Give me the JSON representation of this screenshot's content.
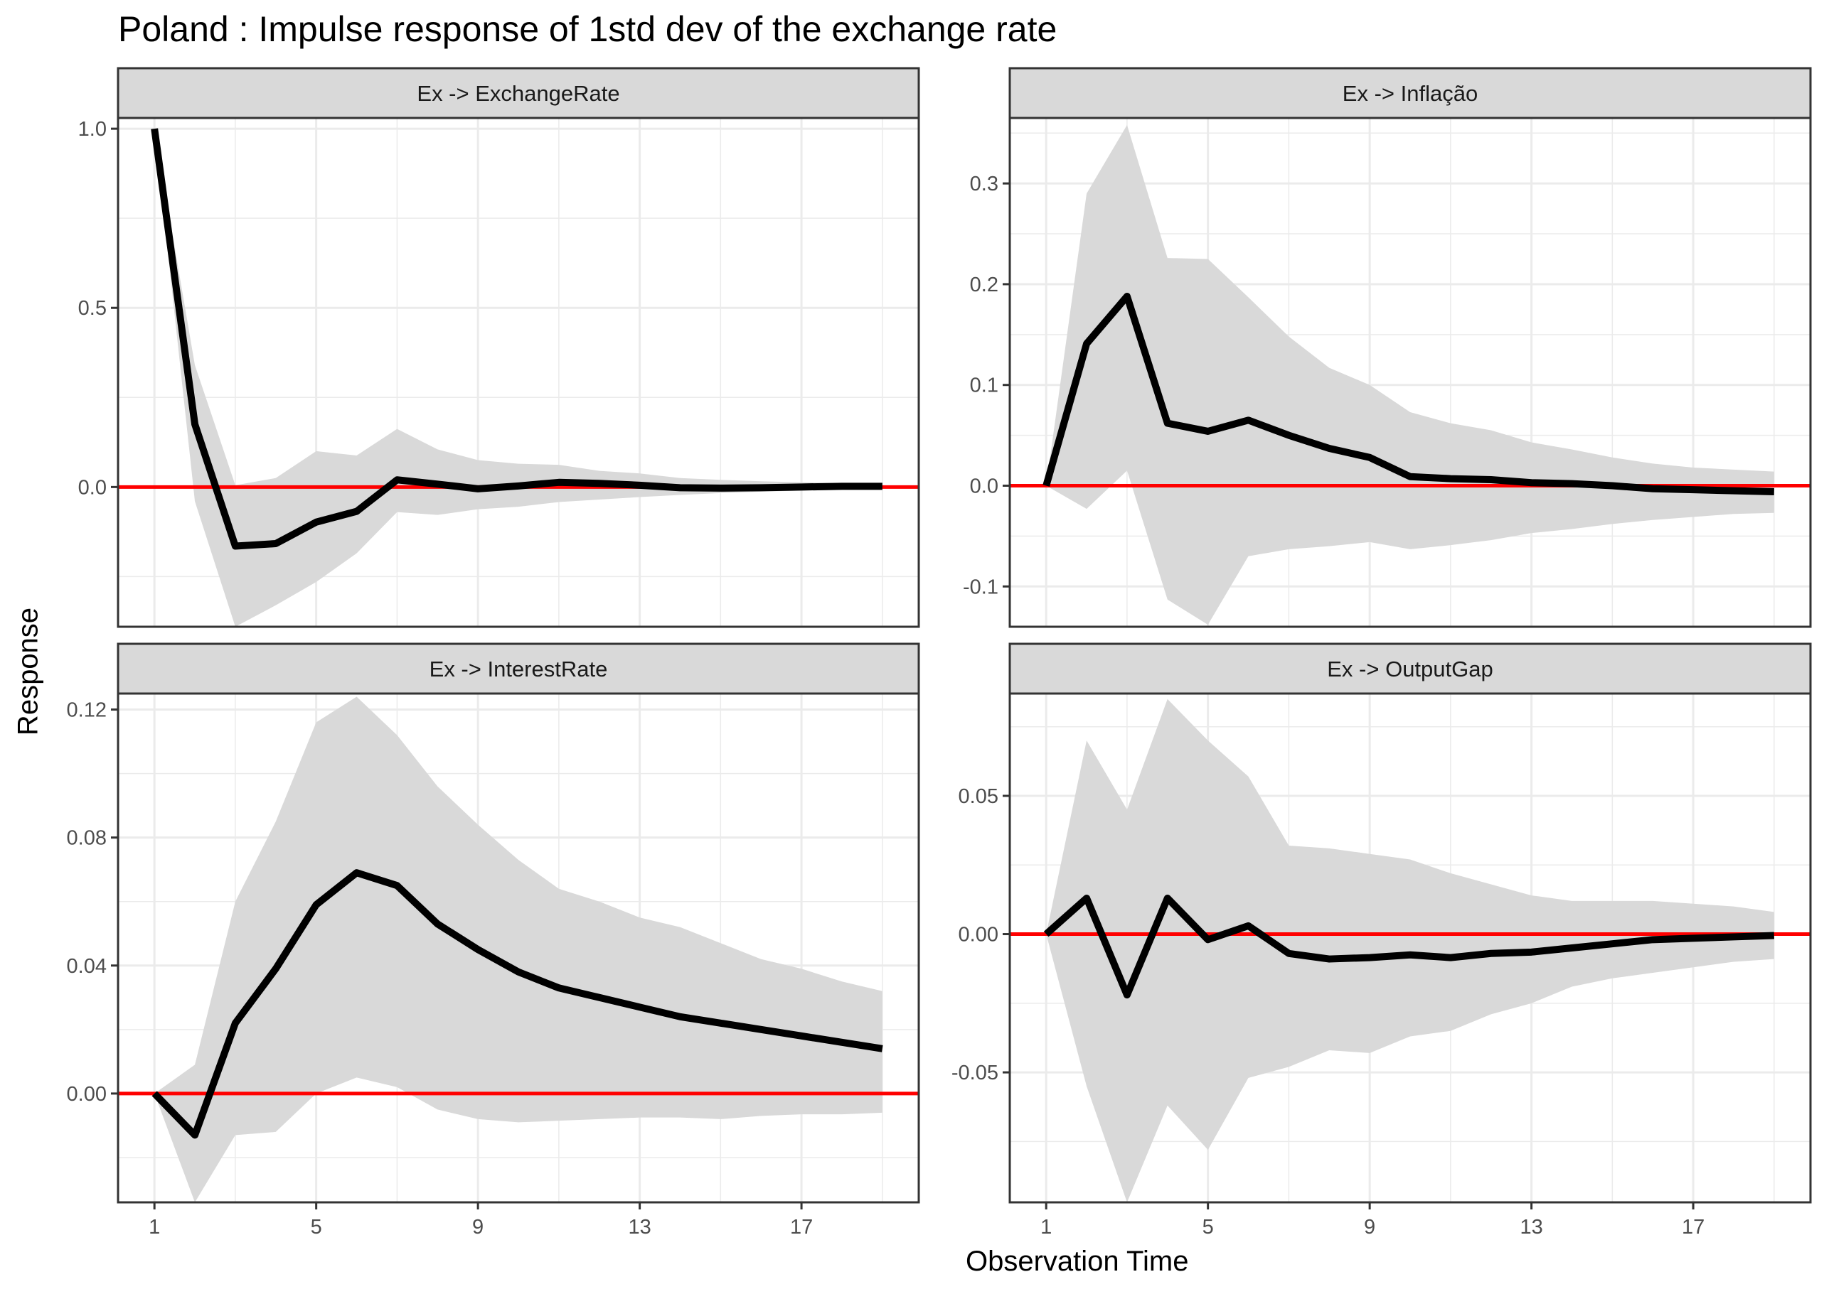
{
  "title": "Poland : Impulse response of 1std dev of the exchange rate",
  "xlabel": "Observation Time",
  "ylabel": "Response",
  "colors": {
    "response": "#000000",
    "zero_line": "#ff0000",
    "band": "#d9d9d9",
    "strip": "#d9d9d9",
    "grid": "#ebebeb"
  },
  "chart_data": {
    "type": "line",
    "x": [
      1,
      2,
      3,
      4,
      5,
      6,
      7,
      8,
      9,
      10,
      11,
      12,
      13,
      14,
      15,
      16,
      17,
      18,
      19
    ],
    "xticks": [
      1,
      5,
      9,
      13,
      17
    ],
    "xlim": [
      0.1,
      19.9
    ],
    "panels": [
      {
        "strip": "Ex -> ExchangeRate",
        "ylim": [
          -0.39,
          1.03
        ],
        "yticks": [
          0.0,
          0.5,
          1.0
        ],
        "ytick_labels": [
          "0.0",
          "0.5",
          "1.0"
        ],
        "response": [
          1.0,
          0.175,
          -0.165,
          -0.158,
          -0.098,
          -0.068,
          0.02,
          0.008,
          -0.005,
          0.003,
          0.013,
          0.01,
          0.005,
          -0.002,
          -0.003,
          -0.002,
          0.0,
          0.002,
          0.002
        ],
        "lower": [
          1.0,
          -0.04,
          -0.39,
          -0.33,
          -0.265,
          -0.185,
          -0.07,
          -0.078,
          -0.062,
          -0.055,
          -0.042,
          -0.035,
          -0.028,
          -0.022,
          -0.017,
          -0.013,
          -0.01,
          -0.008,
          -0.006
        ],
        "upper": [
          1.0,
          0.34,
          0.005,
          0.025,
          0.1,
          0.088,
          0.162,
          0.105,
          0.075,
          0.065,
          0.062,
          0.045,
          0.038,
          0.025,
          0.02,
          0.016,
          0.013,
          0.011,
          0.01
        ]
      },
      {
        "strip": "Ex -> Inflação",
        "ylim": [
          -0.14,
          0.365
        ],
        "yticks": [
          -0.1,
          0.0,
          0.1,
          0.2,
          0.3
        ],
        "ytick_labels": [
          "-0.1",
          "0.0",
          "0.1",
          "0.2",
          "0.3"
        ],
        "response": [
          0.0,
          0.141,
          0.188,
          0.062,
          0.054,
          0.065,
          0.05,
          0.037,
          0.028,
          0.009,
          0.007,
          0.006,
          0.003,
          0.002,
          0.0,
          -0.003,
          -0.004,
          -0.005,
          -0.006
        ],
        "lower": [
          0.0,
          -0.023,
          0.015,
          -0.113,
          -0.138,
          -0.07,
          -0.063,
          -0.06,
          -0.056,
          -0.063,
          -0.059,
          -0.054,
          -0.047,
          -0.043,
          -0.038,
          -0.034,
          -0.031,
          -0.028,
          -0.027
        ],
        "upper": [
          0.0,
          0.29,
          0.358,
          0.226,
          0.225,
          0.187,
          0.148,
          0.117,
          0.1,
          0.073,
          0.062,
          0.055,
          0.043,
          0.036,
          0.028,
          0.022,
          0.018,
          0.016,
          0.014
        ]
      },
      {
        "strip": "Ex -> InterestRate",
        "ylim": [
          -0.034,
          0.125
        ],
        "yticks": [
          0.0,
          0.04,
          0.08,
          0.12
        ],
        "ytick_labels": [
          "0.00",
          "0.04",
          "0.08",
          "0.12"
        ],
        "response": [
          0.0,
          -0.013,
          0.022,
          0.039,
          0.059,
          0.069,
          0.065,
          0.053,
          0.045,
          0.038,
          0.033,
          0.03,
          0.027,
          0.024,
          0.022,
          0.02,
          0.018,
          0.016,
          0.014
        ],
        "lower": [
          0.0,
          -0.034,
          -0.013,
          -0.012,
          0.0,
          0.005,
          0.002,
          -0.005,
          -0.008,
          -0.009,
          -0.0085,
          -0.008,
          -0.0075,
          -0.0075,
          -0.008,
          -0.007,
          -0.0065,
          -0.0065,
          -0.006
        ],
        "upper": [
          0.0,
          0.009,
          0.06,
          0.085,
          0.116,
          0.124,
          0.112,
          0.096,
          0.084,
          0.073,
          0.064,
          0.06,
          0.055,
          0.052,
          0.047,
          0.042,
          0.039,
          0.035,
          0.032
        ]
      },
      {
        "strip": "Ex -> OutputGap",
        "ylim": [
          -0.097,
          0.087
        ],
        "yticks": [
          -0.05,
          0.0,
          0.05
        ],
        "ytick_labels": [
          "-0.05",
          "0.00",
          "0.05"
        ],
        "response": [
          0.0,
          0.013,
          -0.022,
          0.013,
          -0.002,
          0.003,
          -0.007,
          -0.009,
          -0.0085,
          -0.0075,
          -0.0085,
          -0.007,
          -0.0065,
          -0.005,
          -0.0035,
          -0.002,
          -0.0015,
          -0.001,
          -0.0005
        ],
        "lower": [
          0.0,
          -0.055,
          -0.097,
          -0.062,
          -0.078,
          -0.052,
          -0.048,
          -0.042,
          -0.043,
          -0.037,
          -0.035,
          -0.029,
          -0.025,
          -0.019,
          -0.016,
          -0.014,
          -0.012,
          -0.01,
          -0.009
        ],
        "upper": [
          0.0,
          0.07,
          0.045,
          0.085,
          0.07,
          0.057,
          0.032,
          0.031,
          0.029,
          0.027,
          0.022,
          0.018,
          0.014,
          0.012,
          0.012,
          0.012,
          0.011,
          0.01,
          0.008
        ]
      }
    ]
  }
}
